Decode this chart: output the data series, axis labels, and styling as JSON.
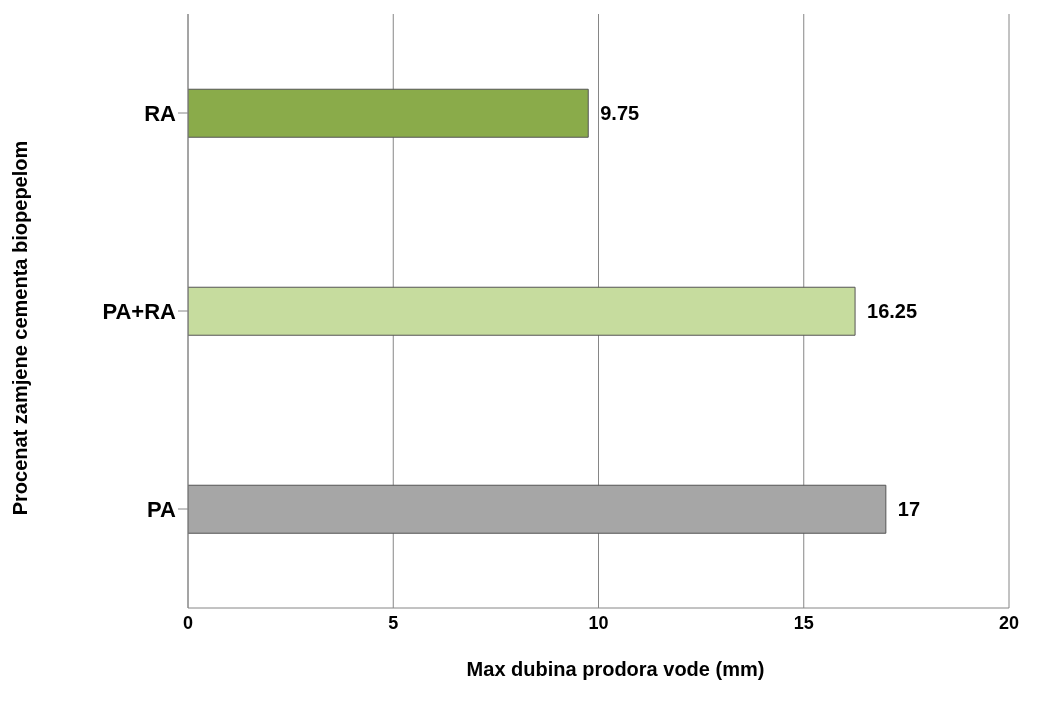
{
  "chart_data": {
    "type": "bar",
    "orientation": "horizontal",
    "categories": [
      "RA",
      "PA+RA",
      "PA"
    ],
    "values": [
      9.75,
      16.25,
      17
    ],
    "colors": [
      "#8aab4a",
      "#c6dc9e",
      "#a6a6a6"
    ],
    "xlim": [
      0,
      20
    ],
    "xticks": [
      0,
      5,
      10,
      15,
      20
    ],
    "xlabel": "Max dubina prodora vode (mm)",
    "ylabel": "Procenat zamjene cementa biopepelom",
    "grid": "x",
    "data_labels": true,
    "legend": false
  }
}
